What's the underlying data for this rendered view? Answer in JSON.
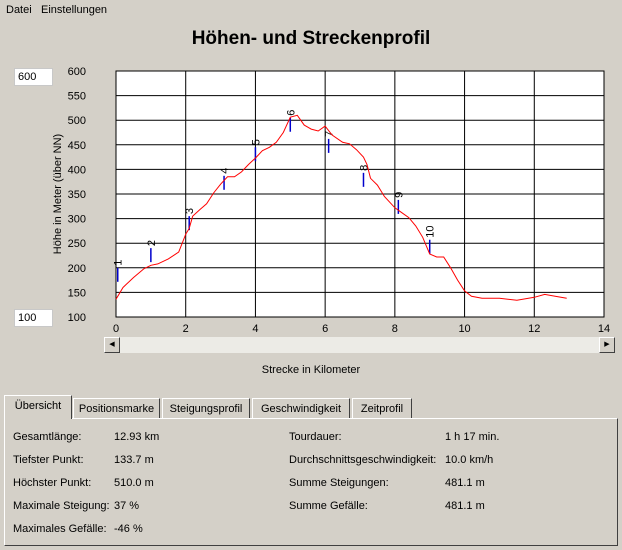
{
  "menu": {
    "file": "Datei",
    "settings": "Einstellungen"
  },
  "title": "Höhen- und Streckenprofil",
  "y_min_box": "100",
  "y_max_box": "600",
  "chart_data": {
    "type": "line",
    "xlabel": "Strecke in Kilometer",
    "ylabel": "Höhe in Meter (über NN)",
    "xlim": [
      0,
      14
    ],
    "ylim": [
      100,
      600
    ],
    "x_ticks": [
      "0",
      "2",
      "4",
      "6",
      "8",
      "10",
      "12",
      "14"
    ],
    "y_ticks": [
      "100",
      "150",
      "200",
      "250",
      "300",
      "350",
      "400",
      "450",
      "500",
      "550",
      "600"
    ],
    "series": [
      {
        "color": "#ff0000",
        "points": [
          [
            0,
            136
          ],
          [
            0.2,
            160
          ],
          [
            0.5,
            180
          ],
          [
            0.8,
            198
          ],
          [
            1.0,
            205
          ],
          [
            1.2,
            208
          ],
          [
            1.5,
            218
          ],
          [
            1.8,
            232
          ],
          [
            2.0,
            268
          ],
          [
            2.1,
            280
          ],
          [
            2.2,
            305
          ],
          [
            2.4,
            318
          ],
          [
            2.6,
            330
          ],
          [
            2.8,
            352
          ],
          [
            3.0,
            370
          ],
          [
            3.2,
            385
          ],
          [
            3.4,
            385
          ],
          [
            3.6,
            395
          ],
          [
            3.8,
            410
          ],
          [
            4.0,
            423
          ],
          [
            4.2,
            438
          ],
          [
            4.4,
            445
          ],
          [
            4.6,
            455
          ],
          [
            4.8,
            475
          ],
          [
            5.0,
            506
          ],
          [
            5.2,
            510
          ],
          [
            5.4,
            490
          ],
          [
            5.6,
            482
          ],
          [
            5.8,
            478
          ],
          [
            6.0,
            488
          ],
          [
            6.2,
            470
          ],
          [
            6.5,
            455
          ],
          [
            6.7,
            452
          ],
          [
            6.9,
            440
          ],
          [
            7.1,
            425
          ],
          [
            7.2,
            410
          ],
          [
            7.3,
            382
          ],
          [
            7.5,
            368
          ],
          [
            7.7,
            345
          ],
          [
            8.0,
            322
          ],
          [
            8.2,
            312
          ],
          [
            8.4,
            302
          ],
          [
            8.6,
            285
          ],
          [
            8.8,
            262
          ],
          [
            9.0,
            228
          ],
          [
            9.2,
            222
          ],
          [
            9.4,
            222
          ],
          [
            9.6,
            200
          ],
          [
            9.8,
            175
          ],
          [
            10.0,
            153
          ],
          [
            10.2,
            142
          ],
          [
            10.5,
            138
          ],
          [
            11.0,
            138
          ],
          [
            11.5,
            134
          ],
          [
            12.0,
            140
          ],
          [
            12.3,
            146
          ],
          [
            12.6,
            142
          ],
          [
            12.93,
            138
          ]
        ]
      }
    ],
    "markers": [
      {
        "label": "1",
        "x": 0.05,
        "y": 200
      },
      {
        "label": "2",
        "x": 1.0,
        "y": 240
      },
      {
        "label": "3",
        "x": 2.1,
        "y": 305
      },
      {
        "label": "4",
        "x": 3.1,
        "y": 387
      },
      {
        "label": "5",
        "x": 4.0,
        "y": 445
      },
      {
        "label": "6",
        "x": 5.0,
        "y": 505
      },
      {
        "label": "7",
        "x": 6.1,
        "y": 462
      },
      {
        "label": "8",
        "x": 7.1,
        "y": 393
      },
      {
        "label": "9",
        "x": 8.1,
        "y": 338
      },
      {
        "label": "10",
        "x": 9.0,
        "y": 257
      }
    ]
  },
  "tabs": [
    {
      "label": "Übersicht"
    },
    {
      "label": "Positionsmarke"
    },
    {
      "label": "Steigungsprofil"
    },
    {
      "label": "Geschwindigkeit"
    },
    {
      "label": "Zeitprofil"
    }
  ],
  "summary": {
    "total_length_label": "Gesamtlänge:",
    "total_length": "12.93 km",
    "lowest_label": "Tiefster Punkt:",
    "lowest": "133.7 m",
    "highest_label": "Höchster Punkt:",
    "highest": "510.0 m",
    "max_climb_label": "Maximale Steigung:",
    "max_climb": "37 %",
    "max_descent_label": "Maximales Gefälle:",
    "max_descent": "-46 %",
    "duration_label": "Tourdauer:",
    "duration": "1 h 17 min.",
    "avg_speed_label": "Durchschnittsgeschwindigkeit:",
    "avg_speed": "10.0 km/h",
    "sum_ascent_label": "Summe Steigungen:",
    "sum_ascent": "481.1 m",
    "sum_descent_label": "Summe Gefälle:",
    "sum_descent": "481.1 m"
  }
}
